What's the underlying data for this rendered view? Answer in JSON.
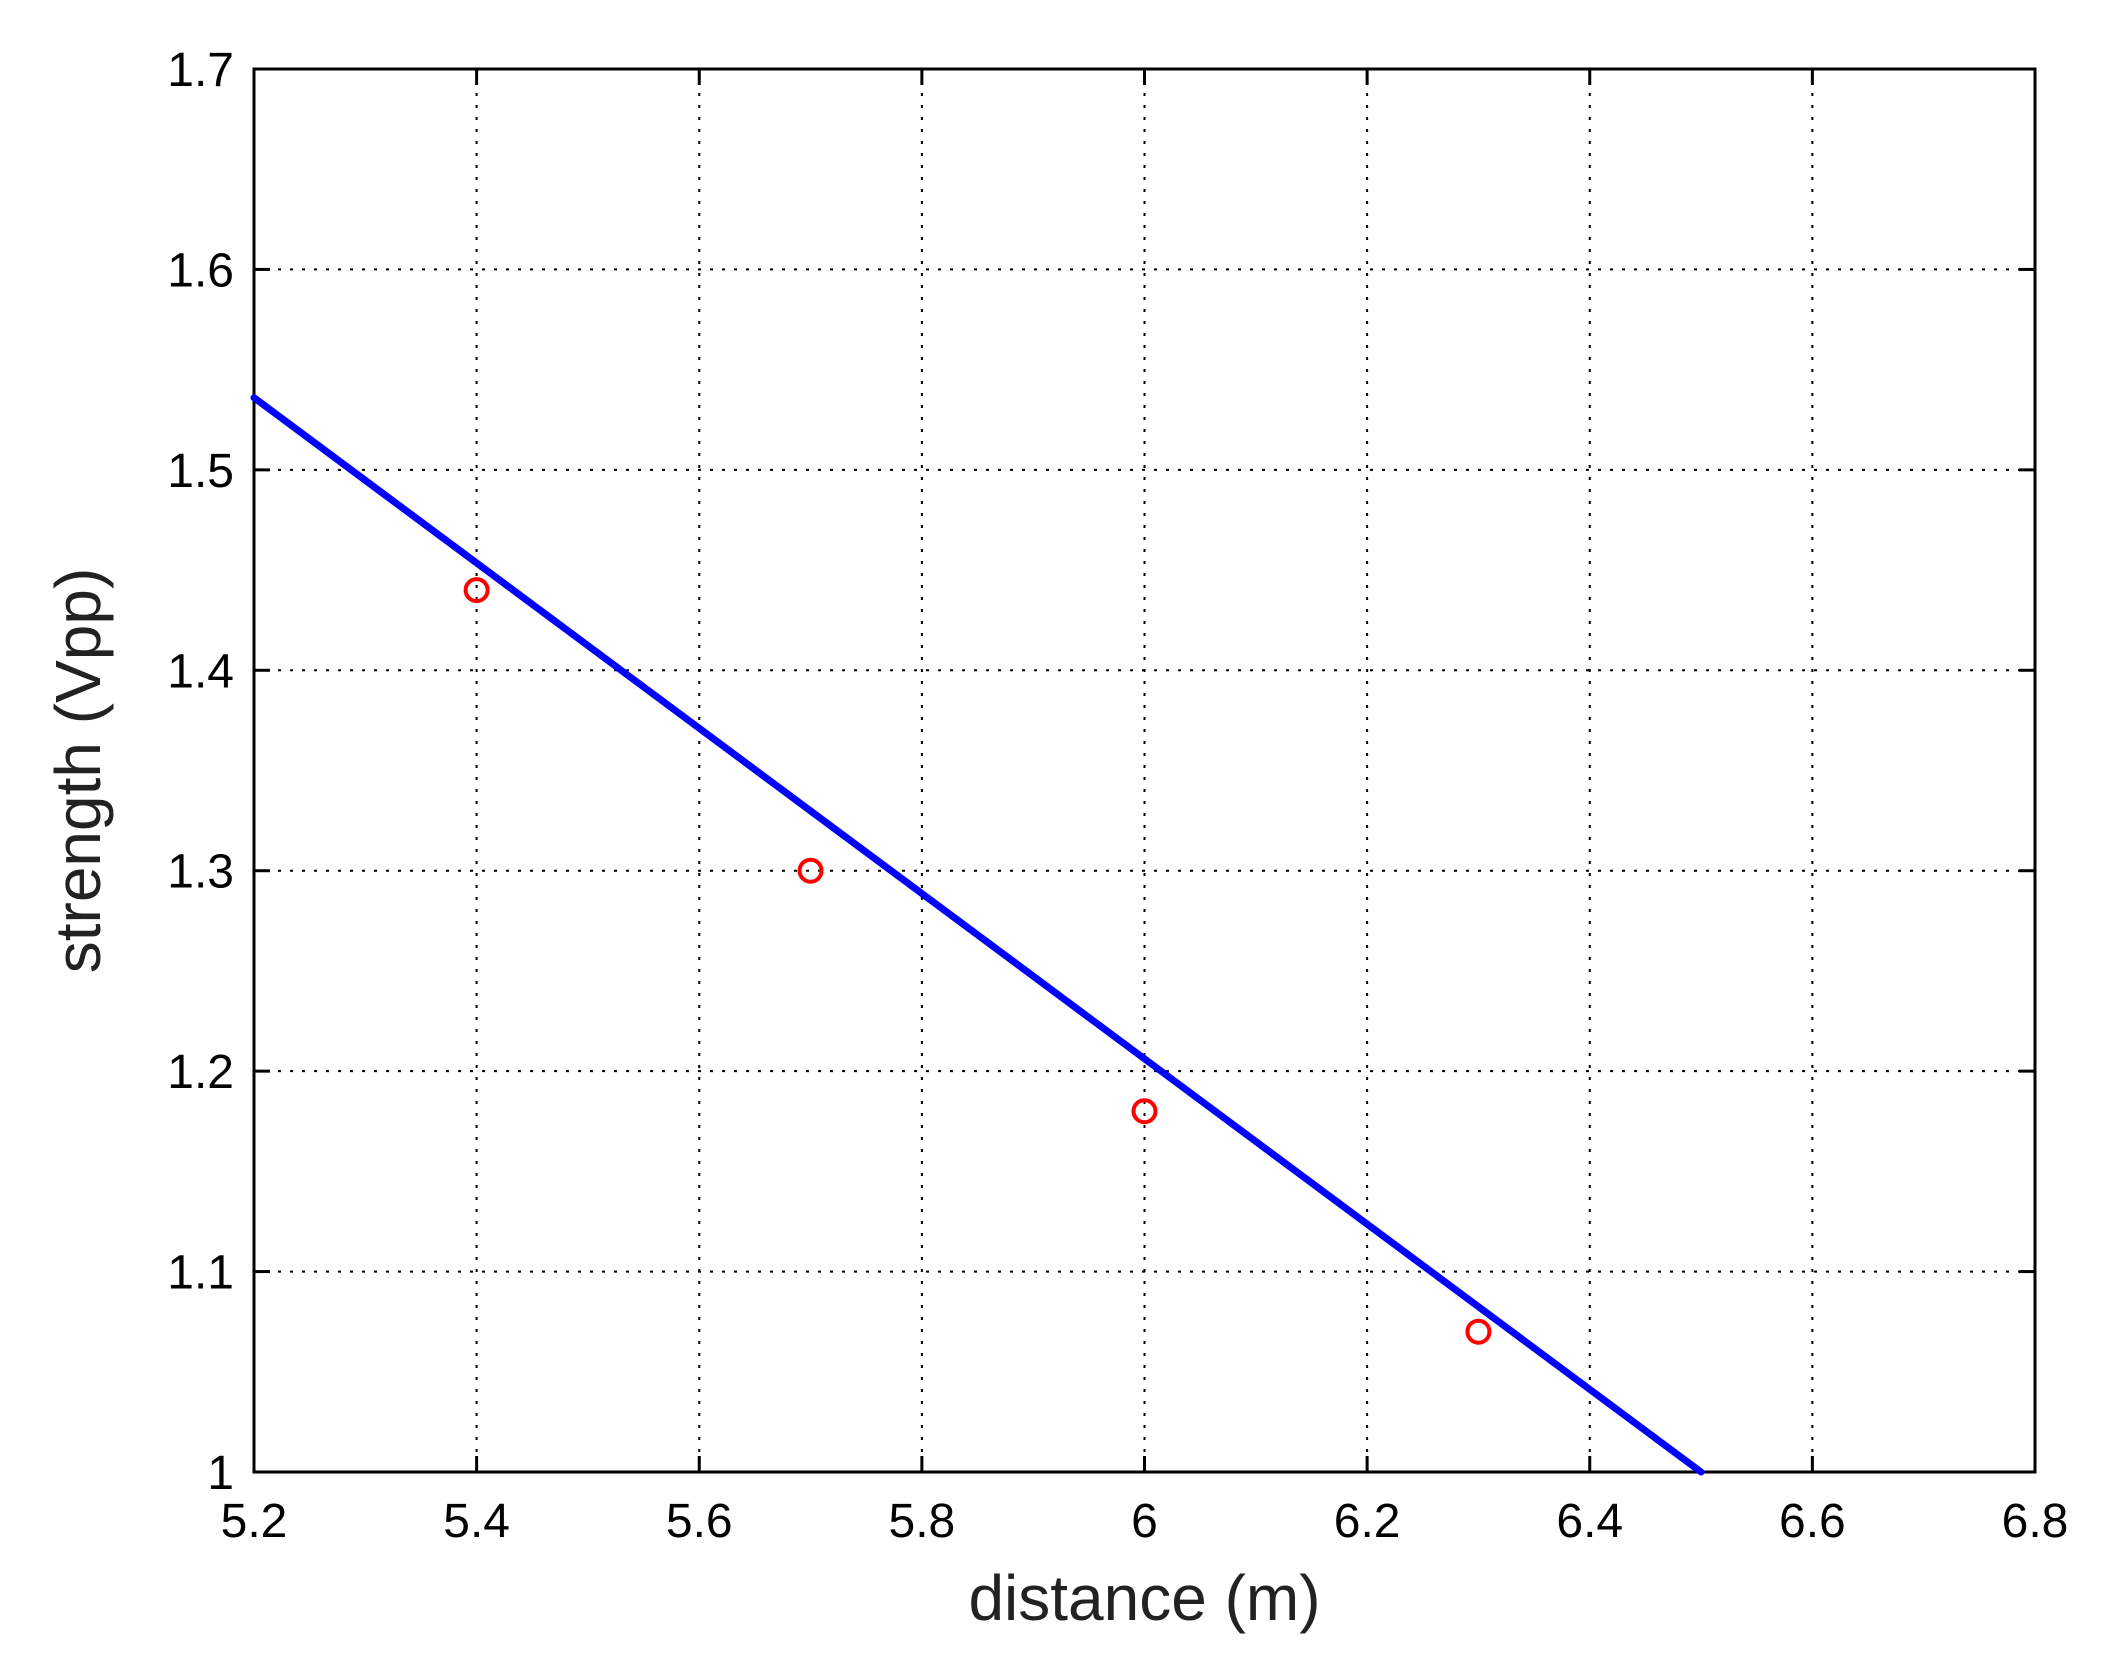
{
  "chart_data": {
    "type": "line",
    "title": "",
    "xlabel": "distance (m)",
    "ylabel": "strength (Vpp)",
    "xlim": [
      5.2,
      6.8
    ],
    "ylim": [
      1.0,
      1.7
    ],
    "xticks": [
      5.2,
      5.4,
      5.6,
      5.8,
      6.0,
      6.2,
      6.4,
      6.6,
      6.8
    ],
    "yticks": [
      1.0,
      1.1,
      1.2,
      1.3,
      1.4,
      1.5,
      1.6,
      1.7
    ],
    "xtick_labels": [
      "5.2",
      "5.4",
      "5.6",
      "5.8",
      "6",
      "6.2",
      "6.4",
      "6.6",
      "6.8"
    ],
    "ytick_labels": [
      "1",
      "1.1",
      "1.2",
      "1.3",
      "1.4",
      "1.5",
      "1.6",
      "1.7"
    ],
    "grid": true,
    "series": [
      {
        "kind": "line",
        "color": "#0000ff",
        "x": [
          5.2,
          6.5
        ],
        "y": [
          1.536,
          1.0
        ]
      },
      {
        "kind": "markers",
        "marker": "circle",
        "color": "#ff0000",
        "x": [
          5.4,
          5.7,
          6.0,
          6.3
        ],
        "y": [
          1.44,
          1.3,
          1.18,
          1.07
        ]
      }
    ]
  }
}
